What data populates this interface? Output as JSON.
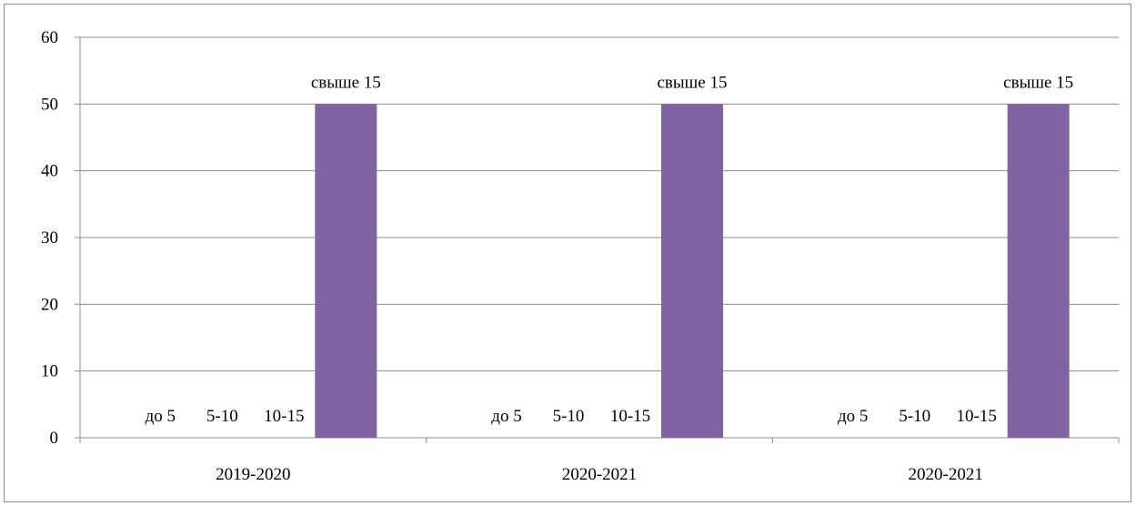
{
  "chart_data": {
    "type": "bar",
    "categories": [
      "2019-2020",
      "2020-2021",
      "2020-2021"
    ],
    "series": [
      {
        "label": "до 5",
        "values": [
          0,
          0,
          0
        ],
        "color": "#4F81BD"
      },
      {
        "label": "5-10",
        "values": [
          0,
          0,
          0
        ],
        "color": "#C0504D"
      },
      {
        "label": "10-15",
        "values": [
          0,
          0,
          0
        ],
        "color": "#9BBB59"
      },
      {
        "label": "свыше 15",
        "values": [
          50,
          50,
          50
        ],
        "color": "#8064A2"
      }
    ],
    "ylim": [
      0,
      60
    ],
    "yticks": [
      "0",
      "10",
      "20",
      "30",
      "40",
      "50",
      "60"
    ],
    "grid": true,
    "legend": "none",
    "data_labels": "series name"
  }
}
